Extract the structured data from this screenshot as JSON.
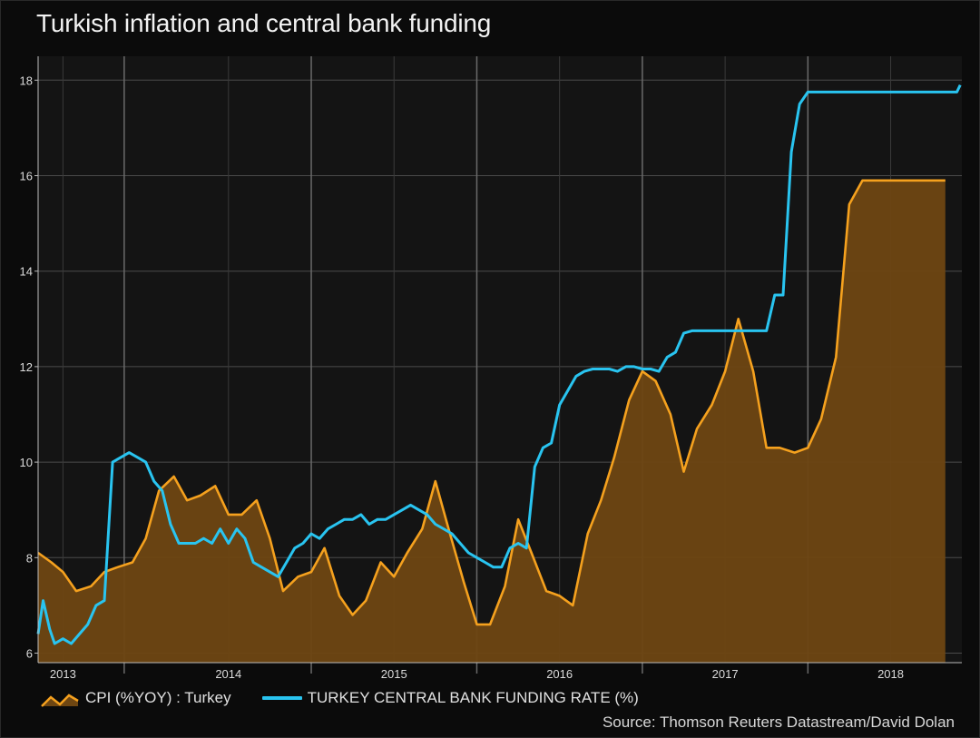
{
  "title": "Turkish inflation and central bank funding",
  "source": "Source: Thomson Reuters Datastream/David Dolan",
  "colors": {
    "background": "#0b0b0b",
    "plot_background": "#141414",
    "cpi_line": "#f5a11e",
    "cpi_fill": "#6e4612",
    "funding_line": "#29c4f0",
    "grid": "#4a4a4a"
  },
  "chart_data": {
    "type": "line",
    "title": "Turkish inflation and central bank funding",
    "xlabel": "",
    "ylabel": "",
    "ylim": [
      5.8,
      18.5
    ],
    "yticks": [
      6,
      8,
      10,
      12,
      14,
      16,
      18
    ],
    "xlim": [
      2012.85,
      2018.43
    ],
    "xticks": [
      {
        "label": "2013",
        "value": 2013.0
      },
      {
        "label": "2014",
        "value": 2014.0
      },
      {
        "label": "2015",
        "value": 2015.0
      },
      {
        "label": "2016",
        "value": 2016.0
      },
      {
        "label": "2017",
        "value": 2017.0
      },
      {
        "label": "2018",
        "value": 2018.0
      }
    ],
    "year_dividers": [
      2013.37,
      2014.5,
      2015.5,
      2016.5,
      2017.5
    ],
    "grid": true,
    "legend": "bottom-left",
    "series": [
      {
        "name": "CPI (%YOY) : Turkey",
        "style": "area",
        "x": [
          2012.85,
          2012.93,
          2013.0,
          2013.08,
          2013.17,
          2013.25,
          2013.33,
          2013.42,
          2013.5,
          2013.58,
          2013.67,
          2013.75,
          2013.83,
          2013.92,
          2014.0,
          2014.08,
          2014.17,
          2014.25,
          2014.33,
          2014.42,
          2014.5,
          2014.58,
          2014.67,
          2014.75,
          2014.83,
          2014.92,
          2015.0,
          2015.08,
          2015.17,
          2015.25,
          2015.33,
          2015.42,
          2015.5,
          2015.58,
          2015.67,
          2015.75,
          2015.83,
          2015.92,
          2016.0,
          2016.08,
          2016.17,
          2016.25,
          2016.33,
          2016.42,
          2016.5,
          2016.58,
          2016.67,
          2016.75,
          2016.83,
          2016.92,
          2017.0,
          2017.08,
          2017.17,
          2017.25,
          2017.33,
          2017.42,
          2017.5,
          2017.58,
          2017.67,
          2017.75,
          2017.83,
          2017.92,
          2018.0,
          2018.08,
          2018.17,
          2018.25,
          2018.33
        ],
        "values": [
          8.1,
          7.9,
          7.7,
          7.3,
          7.4,
          7.7,
          7.8,
          7.9,
          8.4,
          9.4,
          9.7,
          9.2,
          9.3,
          9.5,
          8.9,
          8.9,
          9.2,
          8.4,
          7.3,
          7.6,
          7.7,
          8.2,
          7.2,
          6.8,
          7.1,
          7.9,
          7.6,
          8.1,
          8.6,
          9.6,
          8.6,
          7.5,
          6.6,
          6.6,
          7.4,
          8.8,
          8.1,
          7.3,
          7.2,
          7.0,
          8.5,
          9.2,
          10.1,
          11.3,
          11.9,
          11.7,
          11.0,
          9.8,
          10.7,
          11.2,
          11.9,
          13.0,
          11.9,
          10.3,
          10.3,
          10.2,
          10.3,
          10.9,
          12.2,
          15.4,
          15.9,
          15.9,
          15.9,
          15.9,
          15.9,
          15.9,
          15.9
        ]
      },
      {
        "name": "TURKEY CENTRAL BANK FUNDING RATE (%)",
        "style": "line",
        "x": [
          2012.85,
          2012.88,
          2012.92,
          2012.95,
          2013.0,
          2013.05,
          2013.1,
          2013.15,
          2013.2,
          2013.25,
          2013.3,
          2013.35,
          2013.4,
          2013.45,
          2013.5,
          2013.55,
          2013.6,
          2013.65,
          2013.7,
          2013.75,
          2013.8,
          2013.85,
          2013.9,
          2013.95,
          2014.0,
          2014.05,
          2014.1,
          2014.15,
          2014.2,
          2014.25,
          2014.3,
          2014.35,
          2014.4,
          2014.45,
          2014.5,
          2014.55,
          2014.6,
          2014.65,
          2014.7,
          2014.75,
          2014.8,
          2014.85,
          2014.9,
          2014.95,
          2015.0,
          2015.05,
          2015.1,
          2015.15,
          2015.2,
          2015.25,
          2015.3,
          2015.35,
          2015.4,
          2015.45,
          2015.5,
          2015.55,
          2015.6,
          2015.65,
          2015.7,
          2015.75,
          2015.8,
          2015.85,
          2015.9,
          2015.95,
          2016.0,
          2016.05,
          2016.1,
          2016.15,
          2016.2,
          2016.25,
          2016.3,
          2016.35,
          2016.4,
          2016.45,
          2016.5,
          2016.55,
          2016.6,
          2016.65,
          2016.7,
          2016.75,
          2016.8,
          2016.85,
          2016.9,
          2016.95,
          2017.0,
          2017.05,
          2017.1,
          2017.15,
          2017.2,
          2017.25,
          2017.3,
          2017.35,
          2017.4,
          2017.45,
          2017.5,
          2017.55,
          2017.6,
          2017.65,
          2017.7,
          2017.75,
          2017.8,
          2017.85,
          2017.9,
          2017.95,
          2018.0,
          2018.05,
          2018.1,
          2018.15,
          2018.2,
          2018.25,
          2018.3,
          2018.35,
          2018.4,
          2018.42
        ],
        "values": [
          6.4,
          7.1,
          6.5,
          6.2,
          6.3,
          6.2,
          6.4,
          6.6,
          7.0,
          7.1,
          10.0,
          10.1,
          10.2,
          10.1,
          10.0,
          9.6,
          9.4,
          8.7,
          8.3,
          8.3,
          8.3,
          8.4,
          8.3,
          8.6,
          8.3,
          8.6,
          8.4,
          7.9,
          7.8,
          7.7,
          7.6,
          7.9,
          8.2,
          8.3,
          8.5,
          8.4,
          8.6,
          8.7,
          8.8,
          8.8,
          8.9,
          8.7,
          8.8,
          8.8,
          8.9,
          9.0,
          9.1,
          9.0,
          8.9,
          8.7,
          8.6,
          8.5,
          8.3,
          8.1,
          8.0,
          7.9,
          7.8,
          7.8,
          8.2,
          8.3,
          8.2,
          9.9,
          10.3,
          10.4,
          11.2,
          11.5,
          11.8,
          11.9,
          11.95,
          11.95,
          11.95,
          11.9,
          12.0,
          12.0,
          11.95,
          11.95,
          11.9,
          12.2,
          12.3,
          12.7,
          12.75,
          12.75,
          12.75,
          12.75,
          12.75,
          12.75,
          12.75,
          12.75,
          12.75,
          12.75,
          13.5,
          13.5,
          16.5,
          17.5,
          17.75,
          17.75,
          17.75,
          17.75,
          17.75,
          17.75,
          17.75,
          17.75,
          17.75,
          17.75,
          17.75,
          17.75,
          17.75,
          17.75,
          17.75,
          17.75,
          17.75,
          17.75,
          17.75,
          17.9
        ]
      }
    ]
  }
}
